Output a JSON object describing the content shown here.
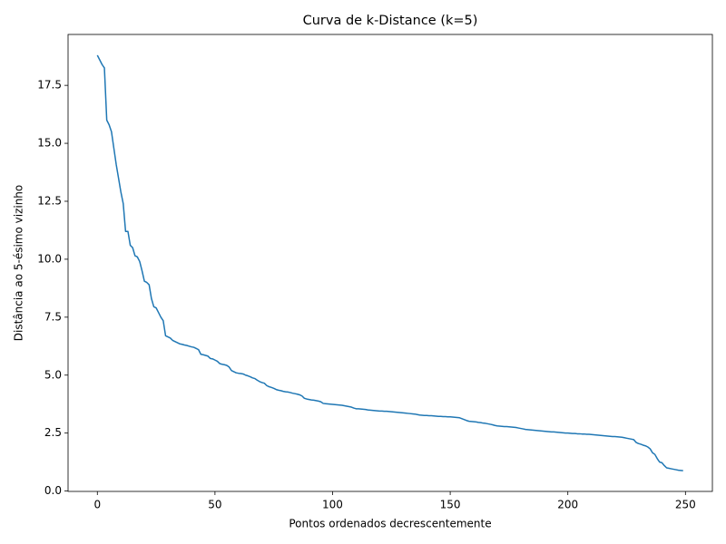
{
  "chart_data": {
    "type": "line",
    "title": "Curva de k-Distance (k=5)",
    "xlabel": "Pontos ordenados decrescentemente",
    "ylabel": "Distância ao 5-ésimo vizinho",
    "x": [
      0,
      1,
      2,
      3,
      4,
      5,
      6,
      7,
      8,
      9,
      10,
      11,
      12,
      13,
      14,
      15,
      16,
      17,
      18,
      19,
      20,
      21,
      22,
      23,
      24,
      25,
      26,
      27,
      28,
      29,
      30,
      31,
      32,
      33,
      34,
      35,
      36,
      37,
      38,
      39,
      40,
      41,
      42,
      43,
      44,
      45,
      46,
      47,
      48,
      49,
      50,
      51,
      52,
      53,
      54,
      55,
      56,
      57,
      58,
      59,
      60,
      61,
      62,
      63,
      64,
      65,
      66,
      67,
      68,
      69,
      70,
      71,
      72,
      73,
      74,
      75,
      76,
      77,
      78,
      79,
      80,
      81,
      82,
      83,
      84,
      85,
      86,
      87,
      88,
      89,
      90,
      91,
      92,
      93,
      94,
      95,
      96,
      97,
      98,
      99,
      100,
      101,
      102,
      103,
      104,
      105,
      106,
      107,
      108,
      109,
      110,
      111,
      112,
      113,
      114,
      115,
      116,
      117,
      118,
      119,
      120,
      121,
      122,
      123,
      124,
      125,
      126,
      127,
      128,
      129,
      130,
      131,
      132,
      133,
      134,
      135,
      136,
      137,
      138,
      139,
      140,
      141,
      142,
      143,
      144,
      145,
      146,
      147,
      148,
      149,
      150,
      151,
      152,
      153,
      154,
      155,
      156,
      157,
      158,
      159,
      160,
      161,
      162,
      163,
      164,
      165,
      166,
      167,
      168,
      169,
      170,
      171,
      172,
      173,
      174,
      175,
      176,
      177,
      178,
      179,
      180,
      181,
      182,
      183,
      184,
      185,
      186,
      187,
      188,
      189,
      190,
      191,
      192,
      193,
      194,
      195,
      196,
      197,
      198,
      199,
      200,
      201,
      202,
      203,
      204,
      205,
      206,
      207,
      208,
      209,
      210,
      211,
      212,
      213,
      214,
      215,
      216,
      217,
      218,
      219,
      220,
      221,
      222,
      223,
      224,
      225,
      226,
      227,
      228,
      229,
      230,
      231,
      232,
      233,
      234,
      235,
      236,
      237,
      238,
      239,
      240,
      241,
      242,
      243,
      244,
      245,
      246,
      247,
      248,
      249
    ],
    "values": [
      18.8,
      18.6,
      18.4,
      18.25,
      16.0,
      15.8,
      15.5,
      14.8,
      14.1,
      13.5,
      12.9,
      12.4,
      11.2,
      11.2,
      10.6,
      10.5,
      10.15,
      10.1,
      9.9,
      9.5,
      9.05,
      9.0,
      8.9,
      8.3,
      7.95,
      7.9,
      7.7,
      7.5,
      7.35,
      6.7,
      6.65,
      6.6,
      6.5,
      6.45,
      6.4,
      6.35,
      6.33,
      6.3,
      6.28,
      6.25,
      6.22,
      6.2,
      6.15,
      6.1,
      5.9,
      5.88,
      5.85,
      5.82,
      5.72,
      5.7,
      5.65,
      5.6,
      5.5,
      5.47,
      5.45,
      5.42,
      5.35,
      5.2,
      5.15,
      5.1,
      5.08,
      5.07,
      5.05,
      5.0,
      4.97,
      4.93,
      4.88,
      4.85,
      4.78,
      4.72,
      4.68,
      4.65,
      4.55,
      4.5,
      4.47,
      4.43,
      4.38,
      4.35,
      4.33,
      4.3,
      4.28,
      4.27,
      4.25,
      4.22,
      4.2,
      4.18,
      4.15,
      4.1,
      4.0,
      3.97,
      3.95,
      3.93,
      3.92,
      3.9,
      3.88,
      3.85,
      3.78,
      3.77,
      3.76,
      3.75,
      3.74,
      3.73,
      3.72,
      3.71,
      3.7,
      3.68,
      3.66,
      3.64,
      3.62,
      3.58,
      3.55,
      3.55,
      3.54,
      3.53,
      3.52,
      3.5,
      3.49,
      3.48,
      3.47,
      3.46,
      3.45,
      3.45,
      3.44,
      3.44,
      3.43,
      3.42,
      3.41,
      3.4,
      3.39,
      3.38,
      3.37,
      3.36,
      3.35,
      3.34,
      3.33,
      3.32,
      3.3,
      3.28,
      3.27,
      3.26,
      3.26,
      3.25,
      3.25,
      3.24,
      3.23,
      3.22,
      3.22,
      3.21,
      3.21,
      3.2,
      3.2,
      3.19,
      3.18,
      3.17,
      3.16,
      3.12,
      3.08,
      3.04,
      3.01,
      3.0,
      2.99,
      2.98,
      2.96,
      2.95,
      2.93,
      2.92,
      2.9,
      2.88,
      2.86,
      2.83,
      2.81,
      2.8,
      2.79,
      2.78,
      2.78,
      2.77,
      2.76,
      2.75,
      2.74,
      2.72,
      2.7,
      2.68,
      2.66,
      2.65,
      2.64,
      2.63,
      2.62,
      2.61,
      2.6,
      2.59,
      2.58,
      2.57,
      2.56,
      2.55,
      2.55,
      2.54,
      2.53,
      2.52,
      2.51,
      2.5,
      2.5,
      2.49,
      2.48,
      2.48,
      2.47,
      2.47,
      2.46,
      2.46,
      2.45,
      2.45,
      2.44,
      2.43,
      2.42,
      2.41,
      2.4,
      2.39,
      2.38,
      2.37,
      2.36,
      2.35,
      2.35,
      2.34,
      2.33,
      2.32,
      2.3,
      2.28,
      2.26,
      2.24,
      2.22,
      2.1,
      2.05,
      2.02,
      1.98,
      1.95,
      1.9,
      1.82,
      1.65,
      1.58,
      1.4,
      1.25,
      1.22,
      1.1,
      1.0,
      0.98,
      0.96,
      0.94,
      0.92,
      0.9,
      0.89,
      0.88
    ],
    "color": "#1f77b4",
    "xlim": [
      -12.45,
      261.45
    ],
    "xticks": [
      0,
      50,
      100,
      150,
      200,
      250
    ],
    "ylim": [
      -0.016,
      19.696
    ],
    "yticks": [
      {
        "value": 0,
        "label": "0.0"
      },
      2.5,
      {
        "value": 5,
        "label": "5.0"
      },
      7.5,
      {
        "value": 10,
        "label": "10.0"
      },
      12.5,
      {
        "value": 15,
        "label": "15.0"
      },
      17.5
    ],
    "grid": false
  }
}
